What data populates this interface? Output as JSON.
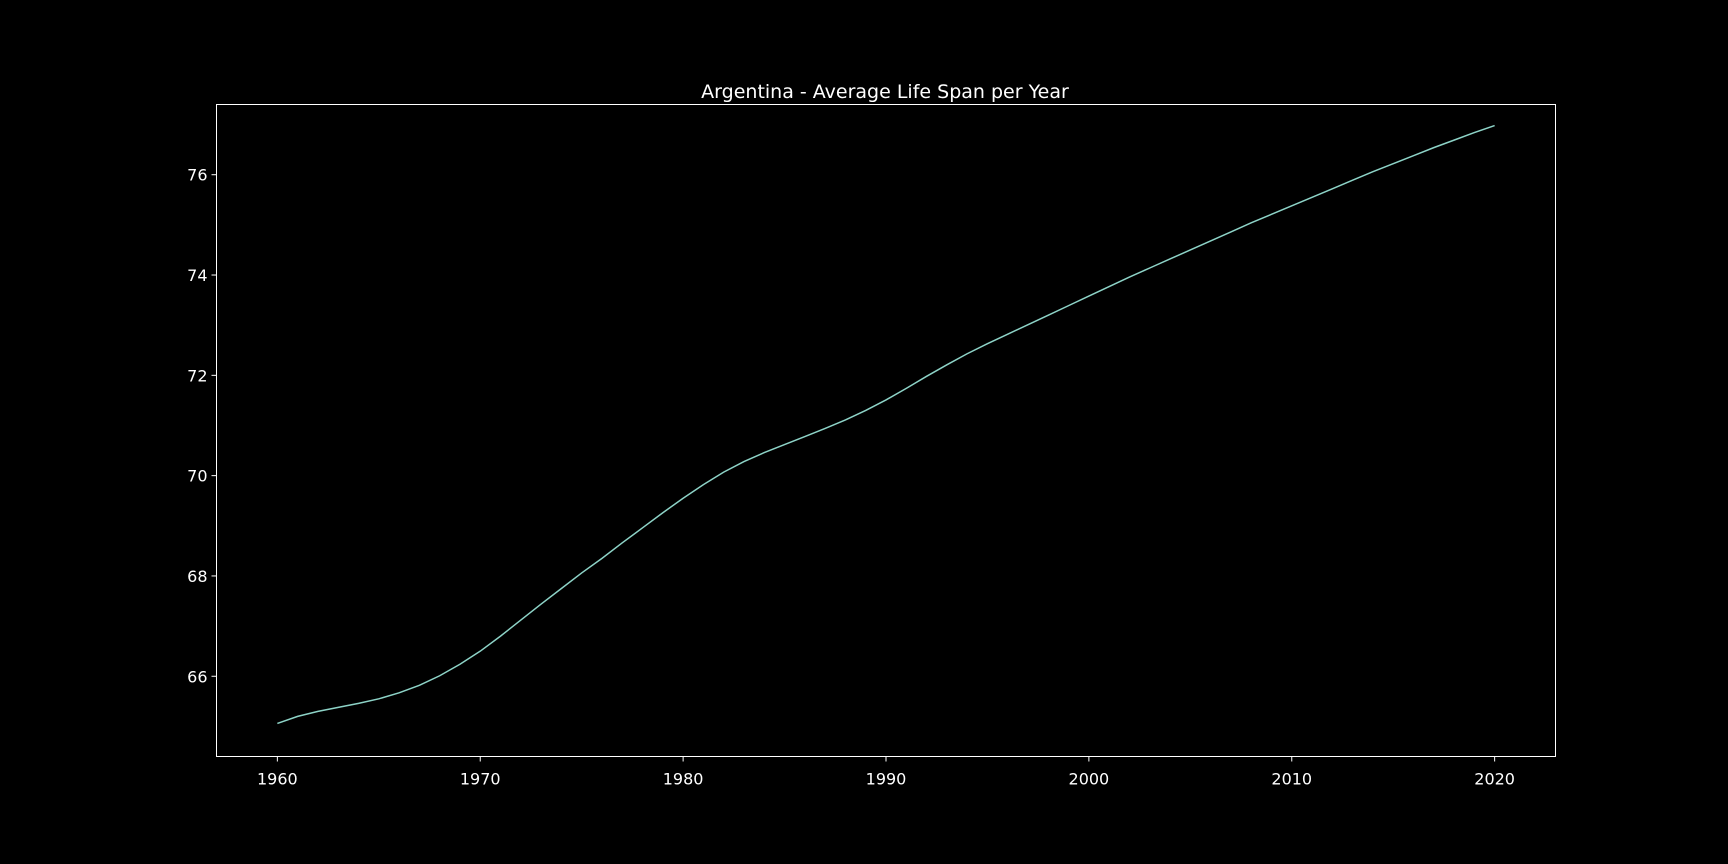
{
  "chart_data": {
    "type": "line",
    "title": "Argentina - Average Life Span per Year",
    "xlabel": "",
    "ylabel": "",
    "xlim": [
      1957,
      2023
    ],
    "ylim": [
      64.4,
      77.4
    ],
    "xticks": [
      1960,
      1970,
      1980,
      1990,
      2000,
      2010,
      2020
    ],
    "yticks": [
      66,
      68,
      70,
      72,
      74,
      76
    ],
    "grid": false,
    "series": [
      {
        "color": "#8dd3c7",
        "x": [
          1960,
          1961,
          1962,
          1963,
          1964,
          1965,
          1966,
          1967,
          1968,
          1969,
          1970,
          1971,
          1972,
          1973,
          1974,
          1975,
          1976,
          1977,
          1978,
          1979,
          1980,
          1981,
          1982,
          1983,
          1984,
          1985,
          1986,
          1987,
          1988,
          1989,
          1990,
          1991,
          1992,
          1993,
          1994,
          1995,
          1996,
          1997,
          1998,
          1999,
          2000,
          2001,
          2002,
          2003,
          2004,
          2005,
          2006,
          2007,
          2008,
          2009,
          2010,
          2011,
          2012,
          2013,
          2014,
          2015,
          2016,
          2017,
          2018,
          2019,
          2020
        ],
        "values": [
          65.06,
          65.2,
          65.3,
          65.38,
          65.46,
          65.55,
          65.67,
          65.82,
          66.01,
          66.24,
          66.5,
          66.8,
          67.12,
          67.44,
          67.75,
          68.06,
          68.35,
          68.66,
          68.96,
          69.26,
          69.55,
          69.82,
          70.07,
          70.28,
          70.46,
          70.62,
          70.78,
          70.94,
          71.11,
          71.3,
          71.51,
          71.74,
          71.98,
          72.21,
          72.43,
          72.63,
          72.82,
          73.01,
          73.2,
          73.39,
          73.58,
          73.77,
          73.96,
          74.14,
          74.32,
          74.5,
          74.68,
          74.86,
          75.04,
          75.21,
          75.38,
          75.55,
          75.72,
          75.89,
          76.06,
          76.22,
          76.38,
          76.54,
          76.69,
          76.84,
          76.98
        ]
      }
    ]
  }
}
